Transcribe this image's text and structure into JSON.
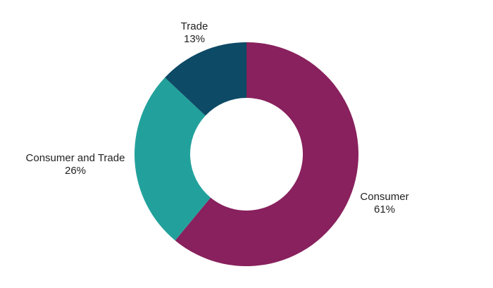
{
  "chart_data": {
    "type": "pie",
    "variant": "donut",
    "title": "",
    "categories": [
      "Consumer",
      "Consumer and Trade",
      "Trade"
    ],
    "values": [
      61,
      26,
      13
    ],
    "unit": "%",
    "colors": [
      "#88215D",
      "#22A19C",
      "#0D4A66"
    ],
    "labels": [
      {
        "name": "Consumer",
        "value": "61%"
      },
      {
        "name": "Consumer and Trade",
        "value": "26%"
      },
      {
        "name": "Trade",
        "value": "13%"
      }
    ],
    "start_angle": "12 o'clock",
    "direction": "clockwise",
    "legend": "none (data labels outside slices)"
  }
}
